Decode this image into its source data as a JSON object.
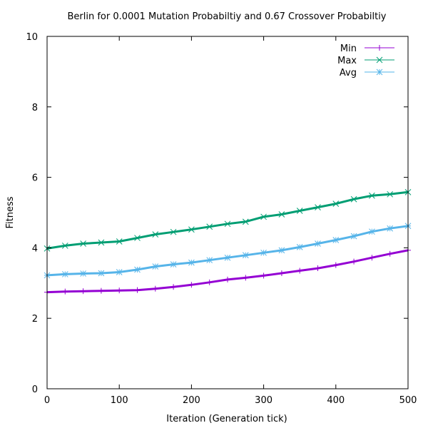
{
  "chart_data": {
    "type": "line",
    "title": "Berlin for 0.0001 Mutation Probabiltiy and 0.67 Crossover Probabiltiy",
    "xlabel": "Iteration (Generation tick)",
    "ylabel": "Fitness",
    "xlim": [
      0,
      500
    ],
    "ylim": [
      0,
      10
    ],
    "xticks": [
      "0",
      "100",
      "200",
      "300",
      "400",
      "500"
    ],
    "yticks": [
      "0",
      "2",
      "4",
      "6",
      "8",
      "10"
    ],
    "grid": false,
    "legend": "top-right",
    "x": [
      0,
      25,
      50,
      75,
      100,
      125,
      150,
      175,
      200,
      225,
      250,
      275,
      300,
      325,
      350,
      375,
      400,
      425,
      450,
      475,
      500
    ],
    "series": [
      {
        "name": "Min",
        "color": "#9400d3",
        "marker": "plus",
        "values": [
          2.74,
          2.76,
          2.77,
          2.78,
          2.79,
          2.8,
          2.84,
          2.89,
          2.95,
          3.02,
          3.1,
          3.15,
          3.21,
          3.28,
          3.35,
          3.42,
          3.51,
          3.61,
          3.72,
          3.83,
          3.93
        ]
      },
      {
        "name": "Max",
        "color": "#009e73",
        "marker": "cross",
        "values": [
          3.98,
          4.06,
          4.12,
          4.15,
          4.18,
          4.28,
          4.38,
          4.45,
          4.52,
          4.6,
          4.68,
          4.74,
          4.88,
          4.95,
          5.05,
          5.15,
          5.25,
          5.38,
          5.48,
          5.52,
          5.58
        ]
      },
      {
        "name": "Avg",
        "color": "#56b4e9",
        "marker": "star",
        "values": [
          3.22,
          3.25,
          3.27,
          3.28,
          3.31,
          3.38,
          3.47,
          3.53,
          3.58,
          3.65,
          3.72,
          3.79,
          3.86,
          3.93,
          4.02,
          4.12,
          4.22,
          4.33,
          4.46,
          4.55,
          4.62
        ]
      }
    ]
  }
}
